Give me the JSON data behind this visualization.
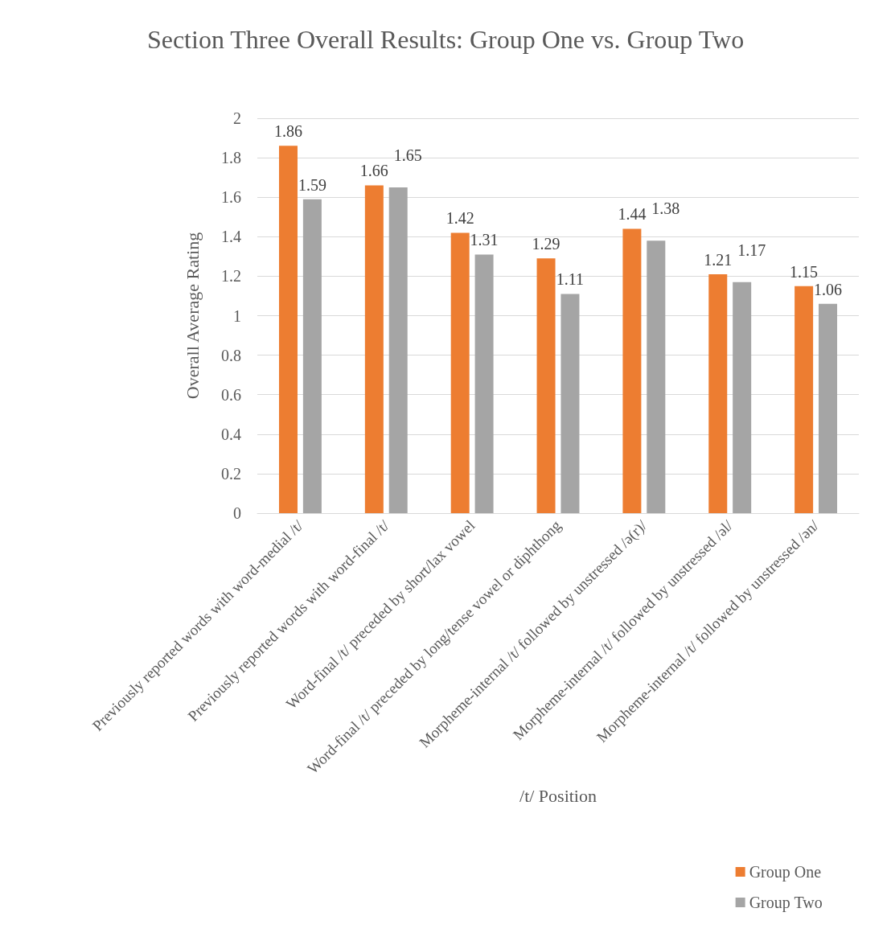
{
  "chart_data": {
    "type": "bar",
    "title": "Section Three Overall Results: Group One vs. Group Two",
    "xlabel": "/t/ Position",
    "ylabel": "Overall Average Rating",
    "categories": [
      "Previously reported words with word-medial /t/",
      "Previously reported words with word-final /t/",
      "Word-final /t/ preceded by short/lax vowel",
      "Word-final /t/ preceded by long/tense vowel or diphthong",
      "Morpheme-internal /t/ followed by unstressed /ə(r)/",
      "Morpheme-internal /t/ followed by unstressed /əl/",
      "Morpheme-internal /t/ followed by unstressed /ən/"
    ],
    "series": [
      {
        "name": "Group One",
        "color": "#ed7d31",
        "values": [
          1.86,
          1.66,
          1.42,
          1.29,
          1.44,
          1.21,
          1.15
        ]
      },
      {
        "name": "Group Two",
        "color": "#a5a5a5",
        "values": [
          1.59,
          1.65,
          1.31,
          1.11,
          1.38,
          1.17,
          1.06
        ]
      }
    ],
    "ylim": [
      0,
      2
    ],
    "yticks": [
      0,
      0.2,
      0.4,
      0.6,
      0.8,
      1,
      1.2,
      1.4,
      1.6,
      1.8,
      2
    ],
    "grid": "y",
    "legend": "bottom right",
    "data_labels": true
  }
}
